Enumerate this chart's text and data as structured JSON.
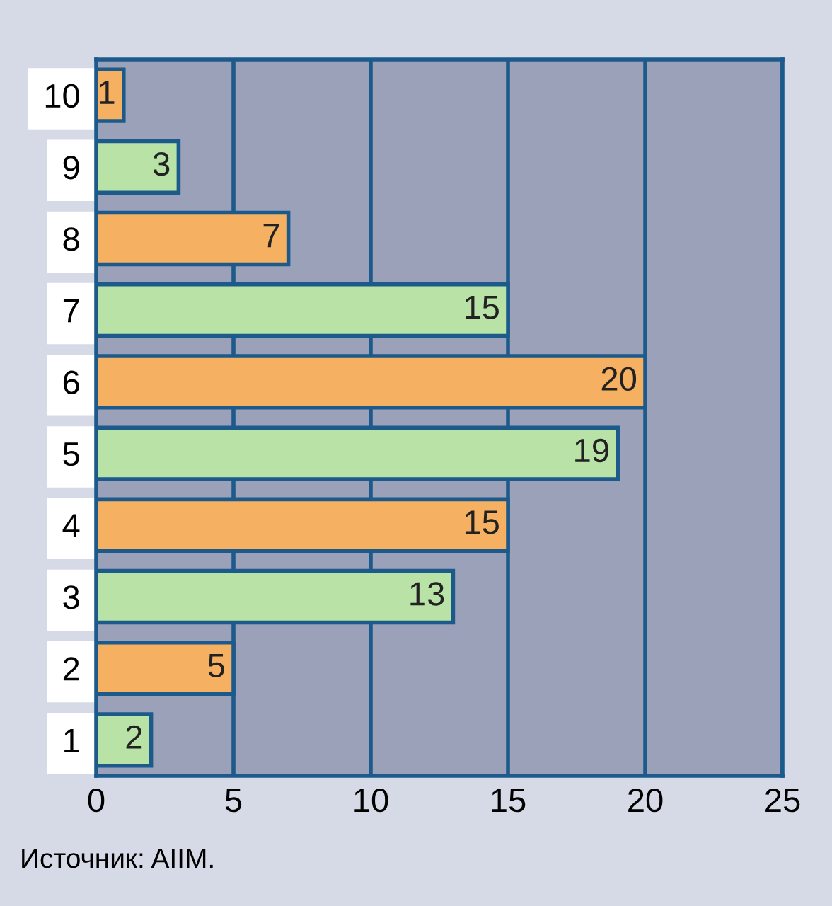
{
  "chart_data": {
    "type": "bar",
    "orientation": "horizontal",
    "categories": [
      "10",
      "9",
      "8",
      "7",
      "6",
      "5",
      "4",
      "3",
      "2",
      "1"
    ],
    "values": [
      1,
      3,
      7,
      15,
      20,
      19,
      15,
      13,
      5,
      2
    ],
    "colors": [
      "#f5b062",
      "#b9e2a6",
      "#f5b062",
      "#b9e2a6",
      "#f5b062",
      "#b9e2a6",
      "#f5b062",
      "#b9e2a6",
      "#f5b062",
      "#b9e2a6"
    ],
    "xlim": [
      0,
      25
    ],
    "xticks": [
      0,
      5,
      10,
      15,
      20,
      25
    ],
    "grid": "x",
    "data_labels": true,
    "annotations": [
      "Источник: AIIM."
    ]
  }
}
